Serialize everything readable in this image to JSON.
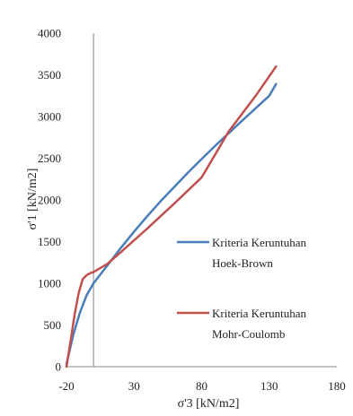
{
  "chart_data": {
    "type": "line",
    "title": "",
    "xlabel": "σ'3 [kN/m2]",
    "ylabel": "σ'1 [kN/m2]",
    "xlim": [
      -20,
      180
    ],
    "ylim": [
      0,
      4000
    ],
    "xticks": [
      "-20",
      "30",
      "80",
      "130",
      "180"
    ],
    "yticks": [
      "0",
      "500",
      "1000",
      "1500",
      "2000",
      "2500",
      "3000",
      "3500",
      "4000"
    ],
    "grid": false,
    "legend_position": "right",
    "series": [
      {
        "name": "Kriteria Keruntuhan Hoek-Brown",
        "color": "#4a7ebb",
        "x": [
          -20,
          -15,
          -10,
          -5,
          0,
          10,
          20,
          30,
          40,
          50,
          60,
          70,
          80,
          90,
          100,
          110,
          120,
          130,
          135
        ],
        "y": [
          30,
          380,
          650,
          860,
          1000,
          1210,
          1420,
          1620,
          1810,
          1990,
          2160,
          2330,
          2490,
          2650,
          2800,
          2950,
          3100,
          3250,
          3390
        ]
      },
      {
        "name": "Kriteria Keruntuhan Mohr-Coulomb",
        "color": "#c0504d",
        "x": [
          -20,
          -17,
          -14,
          -11,
          -8,
          -5,
          -2,
          0,
          10,
          20,
          40,
          60,
          80,
          100,
          120,
          135
        ],
        "y": [
          0,
          300,
          620,
          880,
          1050,
          1100,
          1125,
          1135,
          1230,
          1370,
          1660,
          1960,
          2270,
          2820,
          3250,
          3600
        ]
      }
    ]
  }
}
